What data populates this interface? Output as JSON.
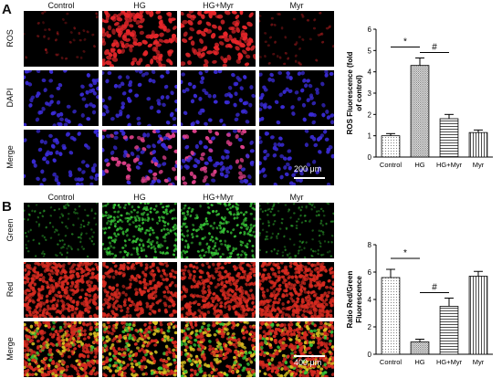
{
  "panelA": {
    "letter": "A",
    "columns": [
      "Control",
      "HG",
      "HG+Myr",
      "Myr"
    ],
    "rows": [
      "ROS",
      "DAPI",
      "Merge"
    ],
    "scale_bar": "200 μm",
    "chart_data": {
      "type": "bar",
      "categories": [
        "Control",
        "HG",
        "HG+Myr",
        "Myr"
      ],
      "values": [
        1.0,
        4.3,
        1.8,
        1.15
      ],
      "errors": [
        0.1,
        0.35,
        0.2,
        0.12
      ],
      "ylabel": "ROS Fluorescence (fold of control)",
      "ylim": [
        0,
        6
      ],
      "yticks": [
        "0",
        "1",
        "2",
        "3",
        "4",
        "5",
        "6"
      ],
      "annotations": [
        {
          "text": "*",
          "between": [
            "Control",
            "HG"
          ]
        },
        {
          "text": "#",
          "between": [
            "HG",
            "HG+Myr"
          ]
        }
      ]
    }
  },
  "panelB": {
    "letter": "B",
    "columns": [
      "Control",
      "HG",
      "HG+Myr",
      "Myr"
    ],
    "rows": [
      "Green",
      "Red",
      "Merge"
    ],
    "scale_bar": "400 μm",
    "chart_data": {
      "type": "bar",
      "categories": [
        "Control",
        "HG",
        "HG+Myr",
        "Myr"
      ],
      "values": [
        5.6,
        0.9,
        3.5,
        5.7
      ],
      "errors": [
        0.6,
        0.2,
        0.6,
        0.35
      ],
      "ylabel": "Ratio Red/Green Fluorescence",
      "ylim": [
        0,
        8
      ],
      "yticks": [
        "0",
        "2",
        "4",
        "6",
        "8"
      ],
      "annotations": [
        {
          "text": "*",
          "between": [
            "Control",
            "HG"
          ]
        },
        {
          "text": "#",
          "between": [
            "HG",
            "HG+Myr"
          ]
        }
      ]
    }
  },
  "colors": {
    "ros": "#e8262a",
    "dapi": "#3a2bd6",
    "merge_a": "#e0408a",
    "green": "#36c236",
    "red": "#d62a20",
    "merge_b": "#d8c020"
  }
}
